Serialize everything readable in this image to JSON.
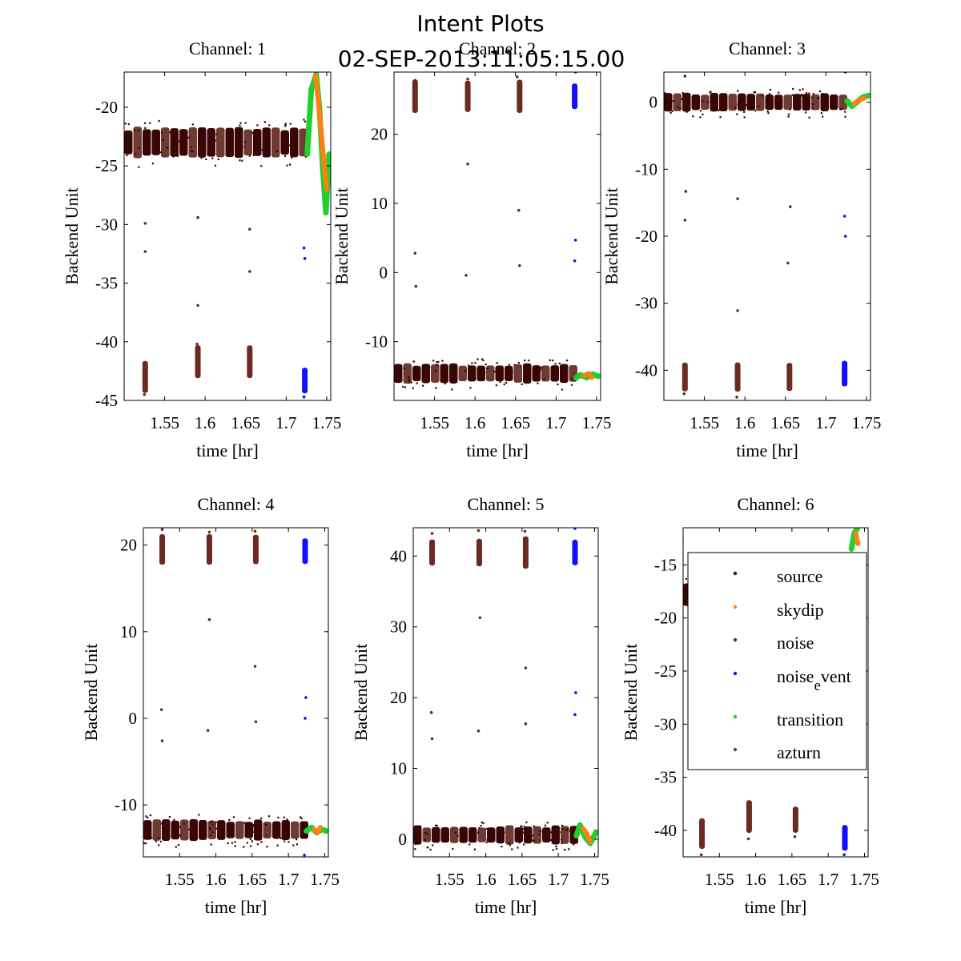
{
  "figure": {
    "title": "Intent Plots",
    "subtitle": "02-SEP-2013:11:05:15.00"
  },
  "colors": {
    "source": "#3a0505",
    "skydip": "#ff8010",
    "noise": "#6b2a22",
    "noise_event": "#1010ff",
    "transition": "#20d030",
    "azturn": "#7a3b30",
    "band_light": "#6e3a32"
  },
  "chart_data": [
    {
      "type": "scatter",
      "title": "Channel: 1",
      "xlabel": "time [hr]",
      "ylabel": "Backend Unit",
      "xlim": [
        1.5,
        1.755
      ],
      "ylim": [
        -45,
        -17
      ],
      "xticks": [
        1.55,
        1.6,
        1.65,
        1.7,
        1.75
      ],
      "yticks": [
        -45,
        -40,
        -35,
        -30,
        -25,
        -20
      ],
      "ytick_labels": [
        "-45",
        "-40",
        "-35",
        "-30",
        "-25",
        "-20"
      ],
      "band": {
        "center": -23,
        "spread": 1.2
      },
      "noise_clusters": [
        {
          "x": 1.526,
          "y": -43
        },
        {
          "x": 1.591,
          "y": -41.7
        },
        {
          "x": 1.655,
          "y": -41.7
        }
      ],
      "noise_event_cluster": {
        "x": 1.723,
        "y": -43.3
      },
      "noise_outliers": [
        {
          "x": 1.526,
          "y": -29.9
        },
        {
          "x": 1.526,
          "y": -32.3
        },
        {
          "x": 1.591,
          "y": -29.4
        },
        {
          "x": 1.591,
          "y": -36.9
        },
        {
          "x": 1.655,
          "y": -30.4
        },
        {
          "x": 1.655,
          "y": -34
        },
        {
          "x": 1.525,
          "y": -44.5
        },
        {
          "x": 1.59,
          "y": -40.2
        },
        {
          "x": 1.654,
          "y": -40.7
        }
      ],
      "noise_event_outliers": [
        {
          "x": 1.722,
          "y": -32
        },
        {
          "x": 1.723,
          "y": -32.9
        },
        {
          "x": 1.722,
          "y": -44.7
        }
      ],
      "transition_path": [
        [
          1.726,
          -24
        ],
        [
          1.731,
          -18.5
        ],
        [
          1.737,
          -17.2
        ],
        [
          1.741,
          -20
        ],
        [
          1.745,
          -25
        ],
        [
          1.749,
          -29
        ],
        [
          1.753,
          -24
        ]
      ],
      "skydip_path": [
        [
          1.736,
          -17.3
        ],
        [
          1.739,
          -19
        ],
        [
          1.743,
          -22
        ],
        [
          1.747,
          -25
        ],
        [
          1.75,
          -27
        ]
      ]
    },
    {
      "type": "scatter",
      "title": "Channel: 2",
      "xlabel": "time [hr]",
      "ylabel": "Backend Unit",
      "xlim": [
        1.5,
        1.755
      ],
      "ylim": [
        -18.5,
        29
      ],
      "xticks": [
        1.55,
        1.6,
        1.65,
        1.7,
        1.75
      ],
      "yticks": [
        -10,
        0,
        10,
        20
      ],
      "ytick_labels": [
        "-10",
        "0",
        "10",
        "20"
      ],
      "band": {
        "center": -14.6,
        "spread": 1.3
      },
      "noise_clusters": [
        {
          "x": 1.526,
          "y": 25.5
        },
        {
          "x": 1.591,
          "y": 25.5
        },
        {
          "x": 1.655,
          "y": 25.5
        }
      ],
      "noise_event_cluster": {
        "x": 1.723,
        "y": 25.5
      },
      "noise_outliers": [
        {
          "x": 1.526,
          "y": 2.8
        },
        {
          "x": 1.527,
          "y": -2
        },
        {
          "x": 1.591,
          "y": 15.7
        },
        {
          "x": 1.589,
          "y": -0.4
        },
        {
          "x": 1.654,
          "y": 9
        },
        {
          "x": 1.655,
          "y": 1
        },
        {
          "x": 1.526,
          "y": 27.8
        },
        {
          "x": 1.591,
          "y": 28
        },
        {
          "x": 1.652,
          "y": 28.3
        }
      ],
      "noise_event_outliers": [
        {
          "x": 1.724,
          "y": 4.7
        },
        {
          "x": 1.723,
          "y": 1.7
        },
        {
          "x": 1.724,
          "y": 29
        }
      ],
      "transition_path": [
        [
          1.725,
          -15.2
        ],
        [
          1.73,
          -14.8
        ],
        [
          1.738,
          -15.2
        ],
        [
          1.745,
          -14.7
        ],
        [
          1.752,
          -15
        ]
      ],
      "skydip_path": [
        [
          1.735,
          -14.9
        ],
        [
          1.74,
          -14.6
        ],
        [
          1.744,
          -15.2
        ]
      ]
    },
    {
      "type": "scatter",
      "title": "Channel: 3",
      "xlabel": "time [hr]",
      "ylabel": "Backend Unit",
      "xlim": [
        1.5,
        1.755
      ],
      "ylim": [
        -44.5,
        4.5
      ],
      "xticks": [
        1.55,
        1.6,
        1.65,
        1.7,
        1.75
      ],
      "yticks": [
        -40,
        -30,
        -20,
        -10,
        0
      ],
      "ytick_labels": [
        "-40",
        "-30",
        "-20",
        "-10",
        "0"
      ],
      "band": {
        "center": 0,
        "spread": 1.3
      },
      "noise_clusters": [
        {
          "x": 1.526,
          "y": -41
        },
        {
          "x": 1.591,
          "y": -41
        },
        {
          "x": 1.655,
          "y": -41
        }
      ],
      "noise_event_cluster": {
        "x": 1.723,
        "y": -40.5
      },
      "noise_outliers": [
        {
          "x": 1.527,
          "y": -13.3
        },
        {
          "x": 1.526,
          "y": -17.6
        },
        {
          "x": 1.591,
          "y": -14.4
        },
        {
          "x": 1.591,
          "y": -31.1
        },
        {
          "x": 1.656,
          "y": -15.6
        },
        {
          "x": 1.653,
          "y": -24
        },
        {
          "x": 1.526,
          "y": 3.9
        },
        {
          "x": 1.525,
          "y": -43.5
        },
        {
          "x": 1.59,
          "y": -44
        }
      ],
      "noise_event_outliers": [
        {
          "x": 1.723,
          "y": -17
        },
        {
          "x": 1.724,
          "y": -20
        },
        {
          "x": 1.724,
          "y": 4.5
        }
      ],
      "transition_path": [
        [
          1.726,
          0.2
        ],
        [
          1.732,
          -0.6
        ],
        [
          1.74,
          0.2
        ],
        [
          1.746,
          0.8
        ],
        [
          1.753,
          1
        ]
      ],
      "skydip_path": [
        [
          1.735,
          -0.2
        ],
        [
          1.742,
          0.4
        ],
        [
          1.747,
          0.6
        ]
      ]
    },
    {
      "type": "scatter",
      "title": "Channel: 4",
      "xlabel": "time [hr]",
      "ylabel": "Backend Unit",
      "xlim": [
        1.5,
        1.755
      ],
      "ylim": [
        -16,
        22
      ],
      "xticks": [
        1.55,
        1.6,
        1.65,
        1.7,
        1.75
      ],
      "yticks": [
        -10,
        0,
        10,
        20
      ],
      "ytick_labels": [
        "-10",
        "0",
        "10",
        "20"
      ],
      "band": {
        "center": -12.9,
        "spread": 1.1
      },
      "noise_clusters": [
        {
          "x": 1.526,
          "y": 19.5
        },
        {
          "x": 1.591,
          "y": 19.5
        },
        {
          "x": 1.655,
          "y": 19.5
        }
      ],
      "noise_event_cluster": {
        "x": 1.723,
        "y": 19.3
      },
      "noise_outliers": [
        {
          "x": 1.525,
          "y": 1
        },
        {
          "x": 1.526,
          "y": -2.6
        },
        {
          "x": 1.591,
          "y": 11.4
        },
        {
          "x": 1.589,
          "y": -1.4
        },
        {
          "x": 1.654,
          "y": 6
        },
        {
          "x": 1.655,
          "y": -0.4
        },
        {
          "x": 1.526,
          "y": 21.8
        },
        {
          "x": 1.591,
          "y": 21.5
        },
        {
          "x": 1.654,
          "y": 21.6
        }
      ],
      "noise_event_outliers": [
        {
          "x": 1.724,
          "y": 2.4
        },
        {
          "x": 1.723,
          "y": 0
        },
        {
          "x": 1.722,
          "y": -15.8
        }
      ],
      "transition_path": [
        [
          1.725,
          -13
        ],
        [
          1.732,
          -12.6
        ],
        [
          1.739,
          -13.2
        ],
        [
          1.746,
          -12.8
        ],
        [
          1.752,
          -13
        ]
      ],
      "skydip_path": [
        [
          1.735,
          -12.8
        ],
        [
          1.74,
          -13.2
        ],
        [
          1.744,
          -12.6
        ]
      ]
    },
    {
      "type": "scatter",
      "title": "Channel: 5",
      "xlabel": "time [hr]",
      "ylabel": "Backend Unit",
      "xlim": [
        1.5,
        1.755
      ],
      "ylim": [
        -2.5,
        44
      ],
      "xticks": [
        1.55,
        1.6,
        1.65,
        1.7,
        1.75
      ],
      "yticks": [
        0,
        10,
        20,
        30,
        40
      ],
      "ytick_labels": [
        "0",
        "10",
        "20",
        "30",
        "40"
      ],
      "band": {
        "center": 0.6,
        "spread": 1.2
      },
      "noise_clusters": [
        {
          "x": 1.526,
          "y": 40.5
        },
        {
          "x": 1.591,
          "y": 40.5
        },
        {
          "x": 1.655,
          "y": 40.5
        }
      ],
      "noise_event_cluster": {
        "x": 1.723,
        "y": 40.5
      },
      "noise_outliers": [
        {
          "x": 1.525,
          "y": 17.9
        },
        {
          "x": 1.526,
          "y": 14.2
        },
        {
          "x": 1.592,
          "y": 31.3
        },
        {
          "x": 1.59,
          "y": 15.3
        },
        {
          "x": 1.655,
          "y": 24.2
        },
        {
          "x": 1.655,
          "y": 16.3
        },
        {
          "x": 1.526,
          "y": 43.2
        },
        {
          "x": 1.59,
          "y": 43.6
        },
        {
          "x": 1.654,
          "y": 43.5
        }
      ],
      "noise_event_outliers": [
        {
          "x": 1.724,
          "y": 20.7
        },
        {
          "x": 1.723,
          "y": 17.6
        },
        {
          "x": 1.723,
          "y": 43.9
        }
      ],
      "transition_path": [
        [
          1.725,
          0.5
        ],
        [
          1.73,
          2
        ],
        [
          1.737,
          0.3
        ],
        [
          1.744,
          -0.6
        ],
        [
          1.752,
          1
        ]
      ],
      "skydip_path": [
        [
          1.734,
          1.5
        ],
        [
          1.739,
          0.8
        ],
        [
          1.744,
          -0.4
        ]
      ]
    },
    {
      "type": "scatter",
      "title": "Channel: 6",
      "xlabel": "time [hr]",
      "ylabel": "Backend Unit",
      "xlim": [
        1.5,
        1.755
      ],
      "ylim": [
        -42.5,
        -11.5
      ],
      "xticks": [
        1.55,
        1.6,
        1.65,
        1.7,
        1.75
      ],
      "yticks": [
        -40,
        -35,
        -30,
        -25,
        -20,
        -15
      ],
      "ytick_labels": [
        "-40",
        "-35",
        "-30",
        "-25",
        "-20",
        "-15"
      ],
      "band": {
        "center": -17.8,
        "spread": 1.0
      },
      "noise_clusters": [
        {
          "x": 1.526,
          "y": -40.3
        },
        {
          "x": 1.591,
          "y": -38.7
        },
        {
          "x": 1.655,
          "y": -39
        }
      ],
      "noise_event_cluster": {
        "x": 1.723,
        "y": -40.7
      },
      "noise_outliers": [
        {
          "x": 1.525,
          "y": -42.3
        },
        {
          "x": 1.59,
          "y": -40.8
        },
        {
          "x": 1.654,
          "y": -40.6
        }
      ],
      "noise_event_outliers": [
        {
          "x": 1.722,
          "y": -42.3
        }
      ],
      "transition_path": [
        [
          1.732,
          -13.5
        ],
        [
          1.736,
          -12
        ],
        [
          1.74,
          -11.6
        ]
      ],
      "skydip_path": [
        [
          1.738,
          -12
        ],
        [
          1.741,
          -13
        ]
      ],
      "legend": {
        "placement": "upper-right",
        "entries": [
          {
            "key": "source",
            "label": "source"
          },
          {
            "key": "skydip",
            "label": "skydip"
          },
          {
            "key": "noise",
            "label": "noise"
          },
          {
            "key": "noise_event",
            "label": "noise",
            "sub": "e",
            "rest": "vent"
          },
          {
            "key": "transition",
            "label": "transition"
          },
          {
            "key": "azturn",
            "label": "azturn"
          }
        ]
      }
    }
  ]
}
